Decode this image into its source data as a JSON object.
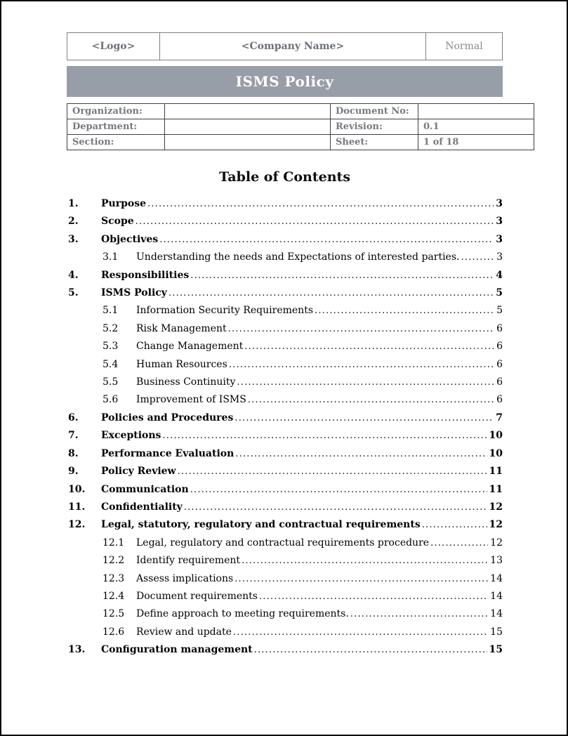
{
  "header": {
    "logo": "<Logo>",
    "company": "<Company Name>",
    "doc_type": "Normal"
  },
  "banner": {
    "title": "ISMS Policy",
    "bg_color": "#989ea7",
    "text_color": "#ffffff"
  },
  "meta": {
    "rows": [
      {
        "label1": "Organization:",
        "value1": "",
        "label2": "Document No:",
        "value2": ""
      },
      {
        "label1": "Department:",
        "value1": "",
        "label2": "Revision:",
        "value2": "0.1"
      },
      {
        "label1": "Section:",
        "value1": "",
        "label2": "Sheet:",
        "value2": "1 of 18"
      }
    ]
  },
  "toc": {
    "heading": "Table of Contents",
    "entries": [
      {
        "num": "1.",
        "title": "Purpose",
        "page": "3",
        "level": 1
      },
      {
        "num": "2.",
        "title": "Scope",
        "page": "3",
        "level": 1
      },
      {
        "num": "3.",
        "title": "Objectives",
        "page": "3",
        "level": 1
      },
      {
        "num": "3.1",
        "title": "Understanding the needs and Expectations of interested parties.",
        "page": "3",
        "level": 2
      },
      {
        "num": "4.",
        "title": "Responsibilities",
        "page": "4",
        "level": 1
      },
      {
        "num": "5.",
        "title": "ISMS Policy",
        "page": "5",
        "level": 1
      },
      {
        "num": "5.1",
        "title": "Information Security Requirements",
        "page": "5",
        "level": 2
      },
      {
        "num": "5.2",
        "title": "Risk Management",
        "page": "6",
        "level": 2
      },
      {
        "num": "5.3",
        "title": "Change Management",
        "page": "6",
        "level": 2
      },
      {
        "num": "5.4",
        "title": "Human Resources",
        "page": "6",
        "level": 2
      },
      {
        "num": "5.5",
        "title": "Business Continuity",
        "page": "6",
        "level": 2
      },
      {
        "num": "5.6",
        "title": "Improvement of ISMS",
        "page": "6",
        "level": 2
      },
      {
        "num": "6.",
        "title": "Policies and Procedures",
        "page": "7",
        "level": 1
      },
      {
        "num": "7.",
        "title": "Exceptions",
        "page": "10",
        "level": 1
      },
      {
        "num": "8.",
        "title": "Performance Evaluation",
        "page": "10",
        "level": 1
      },
      {
        "num": "9.",
        "title": "Policy Review",
        "page": "11",
        "level": 1
      },
      {
        "num": "10.",
        "title": "Communication",
        "page": "11",
        "level": 1
      },
      {
        "num": "11.",
        "title": "Confidentiality",
        "page": "12",
        "level": 1
      },
      {
        "num": "12.",
        "title": "Legal, statutory, regulatory and contractual requirements",
        "page": "12",
        "level": 1
      },
      {
        "num": "12.1",
        "title": "Legal, regulatory and contractual requirements procedure",
        "page": "12",
        "level": 2
      },
      {
        "num": "12.2",
        "title": "Identify requirement",
        "page": "13",
        "level": 2
      },
      {
        "num": "12.3",
        "title": "Assess implications",
        "page": "14",
        "level": 2
      },
      {
        "num": "12.4",
        "title": "Document requirements",
        "page": "14",
        "level": 2
      },
      {
        "num": "12.5",
        "title": "Define approach to meeting requirements.",
        "page": "14",
        "level": 2
      },
      {
        "num": "12.6",
        "title": "Review and update",
        "page": "15",
        "level": 2
      },
      {
        "num": "13.",
        "title": "Configuration management",
        "page": "15",
        "level": 1
      }
    ]
  }
}
